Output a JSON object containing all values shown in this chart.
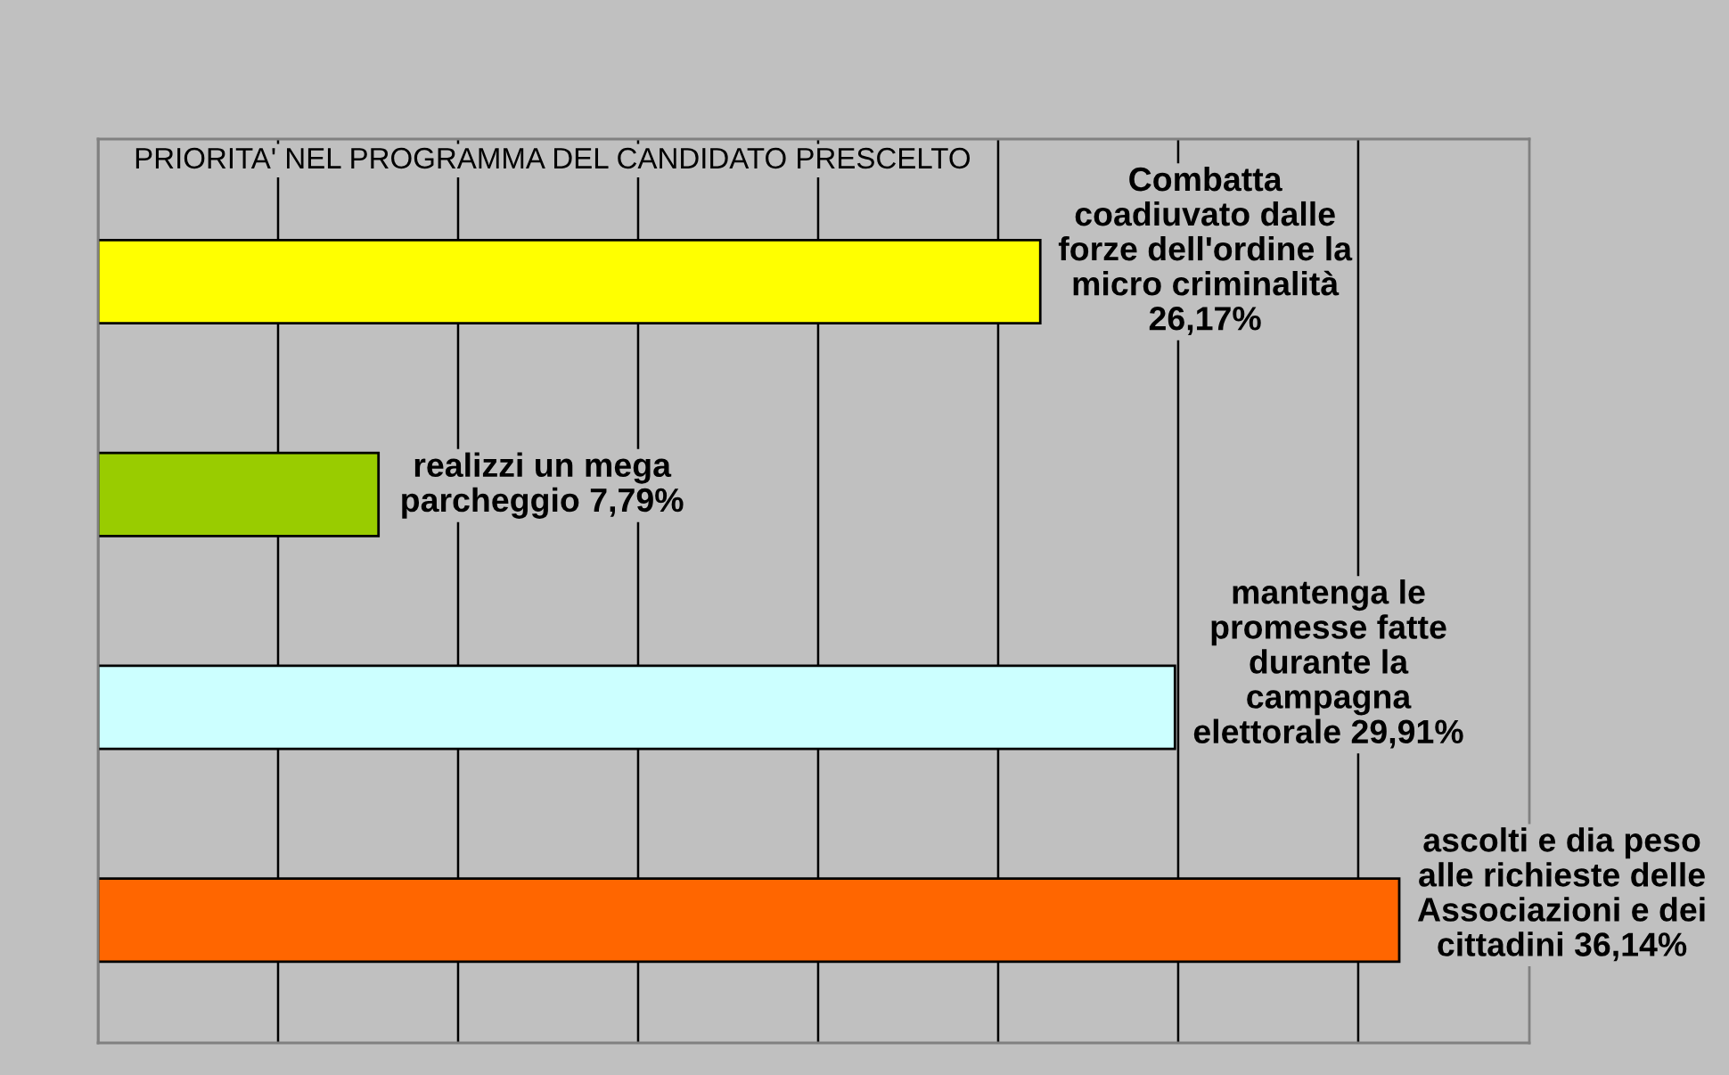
{
  "chart_data": {
    "type": "bar",
    "orientation": "horizontal",
    "title": "PRIORITA' NEL PROGRAMMA DEL CANDIDATO PRESCELTO",
    "categories": [
      null,
      null,
      null,
      null
    ],
    "values": [
      26.17,
      7.79,
      29.91,
      36.14
    ],
    "colors": [
      "#ffff00",
      "#99cc00",
      "#ccffff",
      "#ff6600"
    ],
    "value_labels": [
      "Combatta\ncoadiuvato dalle\nforze dell'ordine la\nmicro criminalità\n26,17%",
      "realizzi un mega\nparcheggio 7,79%",
      "mantenga le\npromesse fatte\ndurante la\ncampagna\nelettorale 29,91%",
      "ascolti e dia peso\nalle richieste delle\nAssociazioni e dei\ncittadini 36,14%"
    ],
    "grid": "x",
    "tick_labels": false
  }
}
